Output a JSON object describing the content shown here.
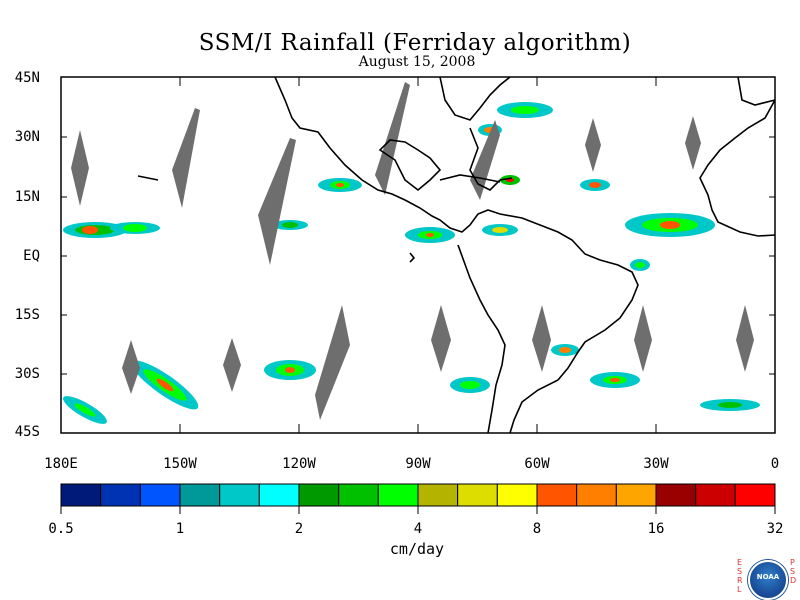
{
  "title": "SSM/I Rainfall (Ferriday algorithm)",
  "date": "August 15, 2008",
  "lat_labels": [
    "45N",
    "30N",
    "15N",
    "EQ",
    "15S",
    "30S",
    "45S"
  ],
  "lon_labels": [
    "180E",
    "150W",
    "120W",
    "90W",
    "60W",
    "30W",
    "0"
  ],
  "colorbar": {
    "colors": [
      "#001a7a",
      "#0033b3",
      "#0055ff",
      "#009999",
      "#00c8c8",
      "#00ffff",
      "#009900",
      "#00c000",
      "#00ff00",
      "#b3b300",
      "#dddd00",
      "#ffff00",
      "#ff5500",
      "#ff7f00",
      "#ffa500",
      "#990000",
      "#cc0000",
      "#ff0000"
    ],
    "labels": [
      "0.5",
      "1",
      "2",
      "4",
      "8",
      "16",
      "32"
    ],
    "units": "cm/day"
  },
  "logo": {
    "left": "ESRL",
    "center": "NOAA",
    "right": "PSD"
  }
}
